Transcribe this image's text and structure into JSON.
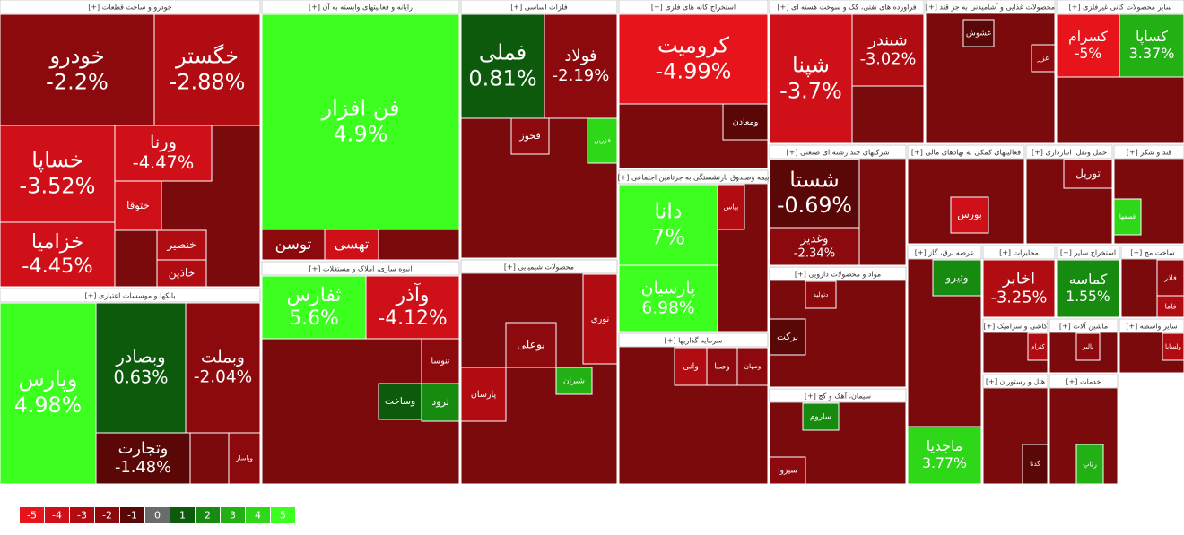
{
  "chart_data": {
    "type": "treemap",
    "legend": {
      "values": [
        -5,
        -4,
        -3,
        -2,
        -1,
        0,
        1,
        2,
        3,
        4,
        5
      ],
      "colors": [
        "#e8141c",
        "#cf1018",
        "#b00c12",
        "#8c090d",
        "#5a0707",
        "#6b6b6b",
        "#0d5a0d",
        "#178a10",
        "#22b014",
        "#2ed818",
        "#3cff1f"
      ]
    },
    "sectors": [
      {
        "name": "[+] خودرو و ساخت قطعات",
        "tiles": {
          "names": [
            "خودرو",
            "خگستر",
            "خساپا",
            "خزامیا",
            "ورنا",
            "ختوقا",
            "خنصیر",
            "خاذین"
          ],
          "values": [
            -2.2,
            -2.88,
            -3.52,
            -4.45,
            -4.47,
            -3.5,
            -2.5,
            -3
          ],
          "value_labels": [
            "-2.2%",
            "-2.88%",
            "-3.52%",
            "-4.45%",
            "-4.47%",
            null,
            null,
            null
          ]
        }
      },
      {
        "name": "[+] بانکها و موسسات اعتباری",
        "tiles": {
          "names": [
            "وپارس",
            "وبصادر",
            "وبملت",
            "وتجارت",
            "وپاسار"
          ],
          "values": [
            4.98,
            0.63,
            -2.04,
            -1.48,
            -1.9
          ],
          "value_labels": [
            "4.98%",
            "0.63%",
            "-2.04%",
            "-1.48%",
            null
          ]
        }
      },
      {
        "name": "[+] رایانه و فعالیتهای وابسته به آن",
        "tiles": {
          "names": [
            "فن افزار",
            "توسن",
            "تهسی"
          ],
          "values": [
            4.9,
            -2,
            -4
          ],
          "value_labels": [
            "4.9%",
            null,
            null
          ]
        }
      },
      {
        "name": "[+] انبوه سازی، املاک و مستغلات",
        "tiles": {
          "names": [
            "ثفارس",
            "وآذر",
            "تنوسا",
            "وساخت",
            "ثرود"
          ],
          "values": [
            5.6,
            -4.12,
            -2,
            1.5,
            2
          ],
          "value_labels": [
            "5.6%",
            "-4.12%",
            null,
            null,
            null
          ]
        }
      },
      {
        "name": "[+] فلزات اساسی",
        "tiles": {
          "names": [
            "فملی",
            "فولاد",
            "فخوز",
            "فزرین"
          ],
          "values": [
            0.81,
            -2.19,
            -2,
            4
          ],
          "value_labels": [
            "0.81%",
            "-2.19%",
            null,
            null
          ]
        }
      },
      {
        "name": "[+] محصولات شیمیایی",
        "tiles": {
          "names": [
            "نوری",
            "پارسان",
            "شیران",
            "بوعلی"
          ],
          "values": [
            -2.5,
            -2.8,
            3,
            -2.3
          ],
          "value_labels": [
            null,
            null,
            null,
            null
          ]
        }
      },
      {
        "name": "[+] استخراج کانه های فلزی",
        "tiles": {
          "names": [
            "کرومیت",
            "ومعادن"
          ],
          "values": [
            -4.99,
            -1
          ],
          "value_labels": [
            "-4.99%",
            null
          ]
        }
      },
      {
        "name": "[+] بیمه وصندوق بازنشستگی به جزتامین اجتماعی",
        "tiles": {
          "names": [
            "دانا",
            "پارسیان",
            "بپاس"
          ],
          "values": [
            7,
            6.98,
            -2.5
          ],
          "value_labels": [
            "7%",
            "6.98%",
            null
          ]
        }
      },
      {
        "name": "[+] سرمایه گذاریها",
        "tiles": {
          "names": [
            "ومهان",
            "وصبا",
            "وانی"
          ],
          "values": [
            -2,
            -2,
            -2.5
          ],
          "value_labels": [
            null,
            null,
            null
          ]
        }
      },
      {
        "name": "[+] فراورده های نفتی، کک و سوخت هسته ای",
        "tiles": {
          "names": [
            "شپنا",
            "شبندر"
          ],
          "values": [
            -3.7,
            -3.02
          ],
          "value_labels": [
            "-3.7%",
            "-3.02%"
          ]
        }
      },
      {
        "name": "[+] شرکتهای چند رشته ای صنعتی",
        "tiles": {
          "names": [
            "شستا",
            "وغدیر"
          ],
          "values": [
            -0.69,
            -2.34
          ],
          "value_labels": [
            "-0.69%",
            "-2.34%"
          ]
        }
      },
      {
        "name": "[+] مواد و محصولات دارویی",
        "tiles": {
          "names": [
            "برکت",
            "دتولید"
          ],
          "values": [
            -1,
            -1.5
          ],
          "value_labels": [
            null,
            null
          ]
        }
      },
      {
        "name": "[+] سیمان، آهک و گچ",
        "tiles": {
          "names": [
            "ساروم",
            "سیزوا"
          ],
          "values": [
            2,
            -2
          ],
          "value_labels": [
            null,
            null
          ]
        }
      },
      {
        "name": "[+] محصولات غذایی و آشامیدنی به جز قند",
        "tiles": {
          "names": [
            "غشوش",
            "غزر"
          ],
          "values": [
            -1,
            -2
          ],
          "value_labels": [
            null,
            null
          ]
        }
      },
      {
        "name": "[+] سایر محصولات کانی غیرفلزی",
        "tiles": {
          "names": [
            "کسرام",
            "کساپا"
          ],
          "values": [
            -5,
            3.37
          ],
          "value_labels": [
            "-5%",
            "3.37%"
          ]
        }
      },
      {
        "name": "[+] فعالیتهای کمکی به نهادهای مالی",
        "tiles": {
          "names": [
            "بورس"
          ],
          "values": [
            -3.5
          ],
          "value_labels": [
            null
          ]
        }
      },
      {
        "name": "[+] حمل ونقل، انبارداری",
        "tiles": {
          "names": [
            "توریل"
          ],
          "values": [
            -1.5
          ],
          "value_labels": [
            null
          ]
        }
      },
      {
        "name": "[+] قند و شکر",
        "tiles": {
          "names": [
            "قصفها"
          ],
          "values": [
            4
          ],
          "value_labels": [
            null
          ]
        }
      },
      {
        "name": "[+] عرضه برق، گاز",
        "tiles": {
          "names": [
            "وتیرو",
            "ماجدیا"
          ],
          "values": [
            2,
            3.77
          ],
          "value_labels": [
            null,
            "3.77%"
          ]
        }
      },
      {
        "name": "[+] مخابرات",
        "tiles": {
          "names": [
            "اخابر"
          ],
          "values": [
            -3.25
          ],
          "value_labels": [
            "-3.25%"
          ]
        }
      },
      {
        "name": "[+] استخراج سایر",
        "tiles": {
          "names": [
            "کماسه"
          ],
          "values": [
            1.55
          ],
          "value_labels": [
            "1.55%"
          ]
        }
      },
      {
        "name": "[+] ساخت مح",
        "tiles": {
          "names": [
            "فاذر",
            "فاما"
          ],
          "values": [
            -2,
            -2.5
          ],
          "value_labels": [
            null,
            null
          ]
        }
      },
      {
        "name": "[+] کاشی و سرامیک",
        "tiles": {
          "names": [
            "کترام"
          ],
          "values": [
            -3
          ],
          "value_labels": [
            null
          ]
        }
      },
      {
        "name": "[+] ماشین آلات",
        "tiles": {
          "names": [
            "بالبر"
          ],
          "values": [
            -2
          ],
          "value_labels": [
            null
          ]
        }
      },
      {
        "name": "[+] سایر واسطه",
        "tiles": {
          "names": [
            "ولساپا"
          ],
          "values": [
            -3
          ],
          "value_labels": [
            null
          ]
        }
      },
      {
        "name": "[+] هتل و رستوران",
        "tiles": {
          "names": [
            "گدنا"
          ],
          "values": [
            -1
          ],
          "value_labels": [
            null
          ]
        }
      },
      {
        "name": "[+] خدمات",
        "tiles": {
          "names": [
            "رتاپ"
          ],
          "values": [
            3
          ],
          "value_labels": [
            null
          ]
        }
      }
    ]
  }
}
